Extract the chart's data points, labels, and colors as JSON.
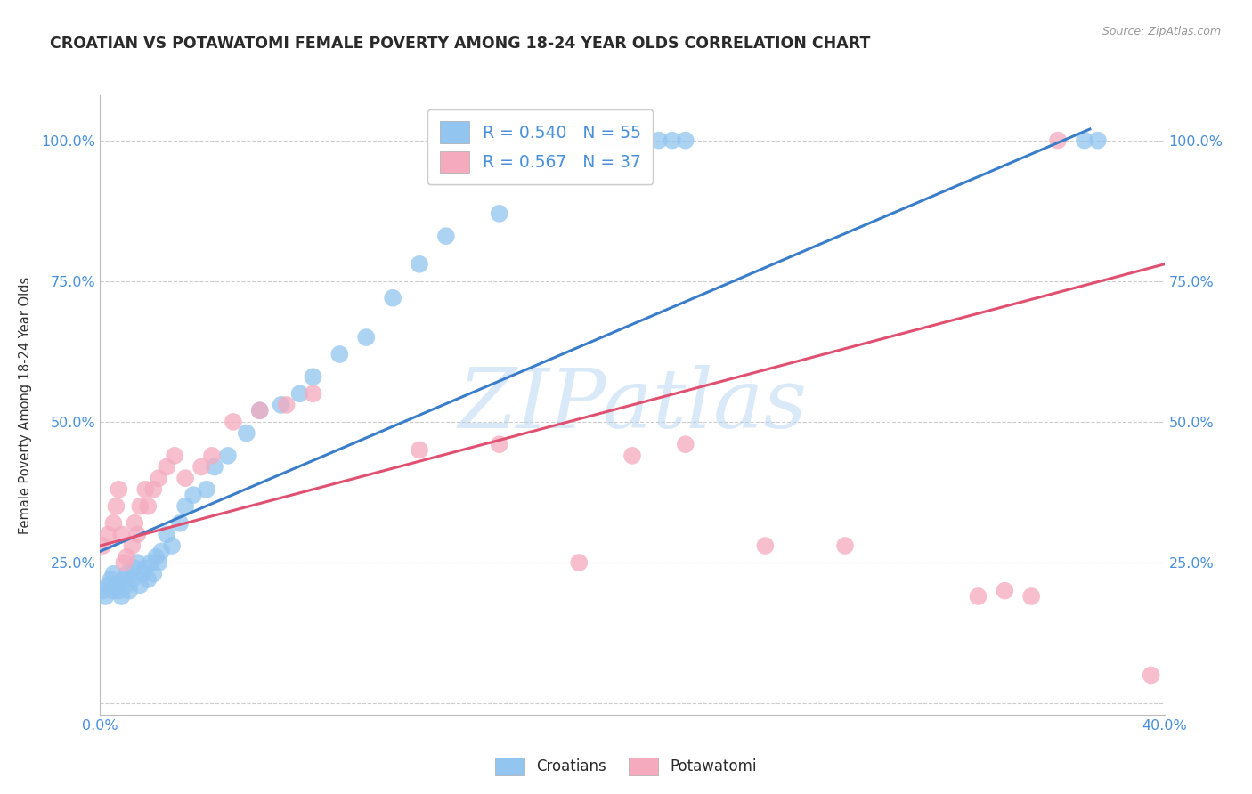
{
  "title": "CROATIAN VS POTAWATOMI FEMALE POVERTY AMONG 18-24 YEAR OLDS CORRELATION CHART",
  "source": "Source: ZipAtlas.com",
  "ylabel": "Female Poverty Among 18-24 Year Olds",
  "xlim": [
    0.0,
    0.4
  ],
  "ylim": [
    -0.02,
    1.08
  ],
  "legend_R_blue": "0.540",
  "legend_N_blue": "55",
  "legend_R_pink": "0.567",
  "legend_N_pink": "37",
  "watermark_zip": "ZIP",
  "watermark_atlas": "atlas",
  "blue_color": "#92C5F0",
  "pink_color": "#F5AABE",
  "blue_line_color": "#3A7DC9",
  "pink_line_color": "#E05070",
  "background_color": "#FFFFFF",
  "grid_color": "#CCCCCC",
  "title_color": "#2A2A2A",
  "axis_label_color": "#4A90D9",
  "blue_x": [
    0.001,
    0.002,
    0.003,
    0.004,
    0.005,
    0.005,
    0.006,
    0.007,
    0.008,
    0.009,
    0.01,
    0.01,
    0.011,
    0.012,
    0.013,
    0.014,
    0.015,
    0.016,
    0.017,
    0.018,
    0.019,
    0.02,
    0.021,
    0.022,
    0.023,
    0.025,
    0.027,
    0.03,
    0.032,
    0.035,
    0.04,
    0.043,
    0.048,
    0.055,
    0.06,
    0.068,
    0.075,
    0.08,
    0.09,
    0.1,
    0.11,
    0.12,
    0.13,
    0.15,
    0.17,
    0.19,
    0.195,
    0.2,
    0.2,
    0.205,
    0.21,
    0.215,
    0.22,
    0.37,
    0.375
  ],
  "blue_y": [
    0.2,
    0.19,
    0.21,
    0.22,
    0.2,
    0.23,
    0.21,
    0.2,
    0.19,
    0.22,
    0.21,
    0.23,
    0.2,
    0.22,
    0.24,
    0.25,
    0.21,
    0.23,
    0.24,
    0.22,
    0.25,
    0.23,
    0.26,
    0.25,
    0.27,
    0.3,
    0.28,
    0.32,
    0.35,
    0.37,
    0.38,
    0.42,
    0.44,
    0.48,
    0.52,
    0.53,
    0.55,
    0.58,
    0.62,
    0.65,
    0.72,
    0.78,
    0.83,
    0.87,
    0.95,
    1.0,
    1.0,
    1.0,
    1.0,
    1.0,
    1.0,
    1.0,
    1.0,
    1.0,
    1.0
  ],
  "pink_x": [
    0.001,
    0.003,
    0.005,
    0.006,
    0.007,
    0.008,
    0.009,
    0.01,
    0.012,
    0.013,
    0.014,
    0.015,
    0.017,
    0.018,
    0.02,
    0.022,
    0.025,
    0.028,
    0.032,
    0.038,
    0.042,
    0.05,
    0.06,
    0.07,
    0.08,
    0.12,
    0.15,
    0.18,
    0.2,
    0.22,
    0.25,
    0.28,
    0.33,
    0.34,
    0.35,
    0.36,
    0.395
  ],
  "pink_y": [
    0.28,
    0.3,
    0.32,
    0.35,
    0.38,
    0.3,
    0.25,
    0.26,
    0.28,
    0.32,
    0.3,
    0.35,
    0.38,
    0.35,
    0.38,
    0.4,
    0.42,
    0.44,
    0.4,
    0.42,
    0.44,
    0.5,
    0.52,
    0.53,
    0.55,
    0.45,
    0.46,
    0.25,
    0.44,
    0.46,
    0.28,
    0.28,
    0.19,
    0.2,
    0.19,
    1.0,
    0.05
  ],
  "blue_line_x0": 0.0,
  "blue_line_y0": 0.27,
  "blue_line_x1": 0.372,
  "blue_line_y1": 1.02,
  "pink_line_x0": 0.0,
  "pink_line_y0": 0.28,
  "pink_line_x1": 0.4,
  "pink_line_y1": 0.78
}
